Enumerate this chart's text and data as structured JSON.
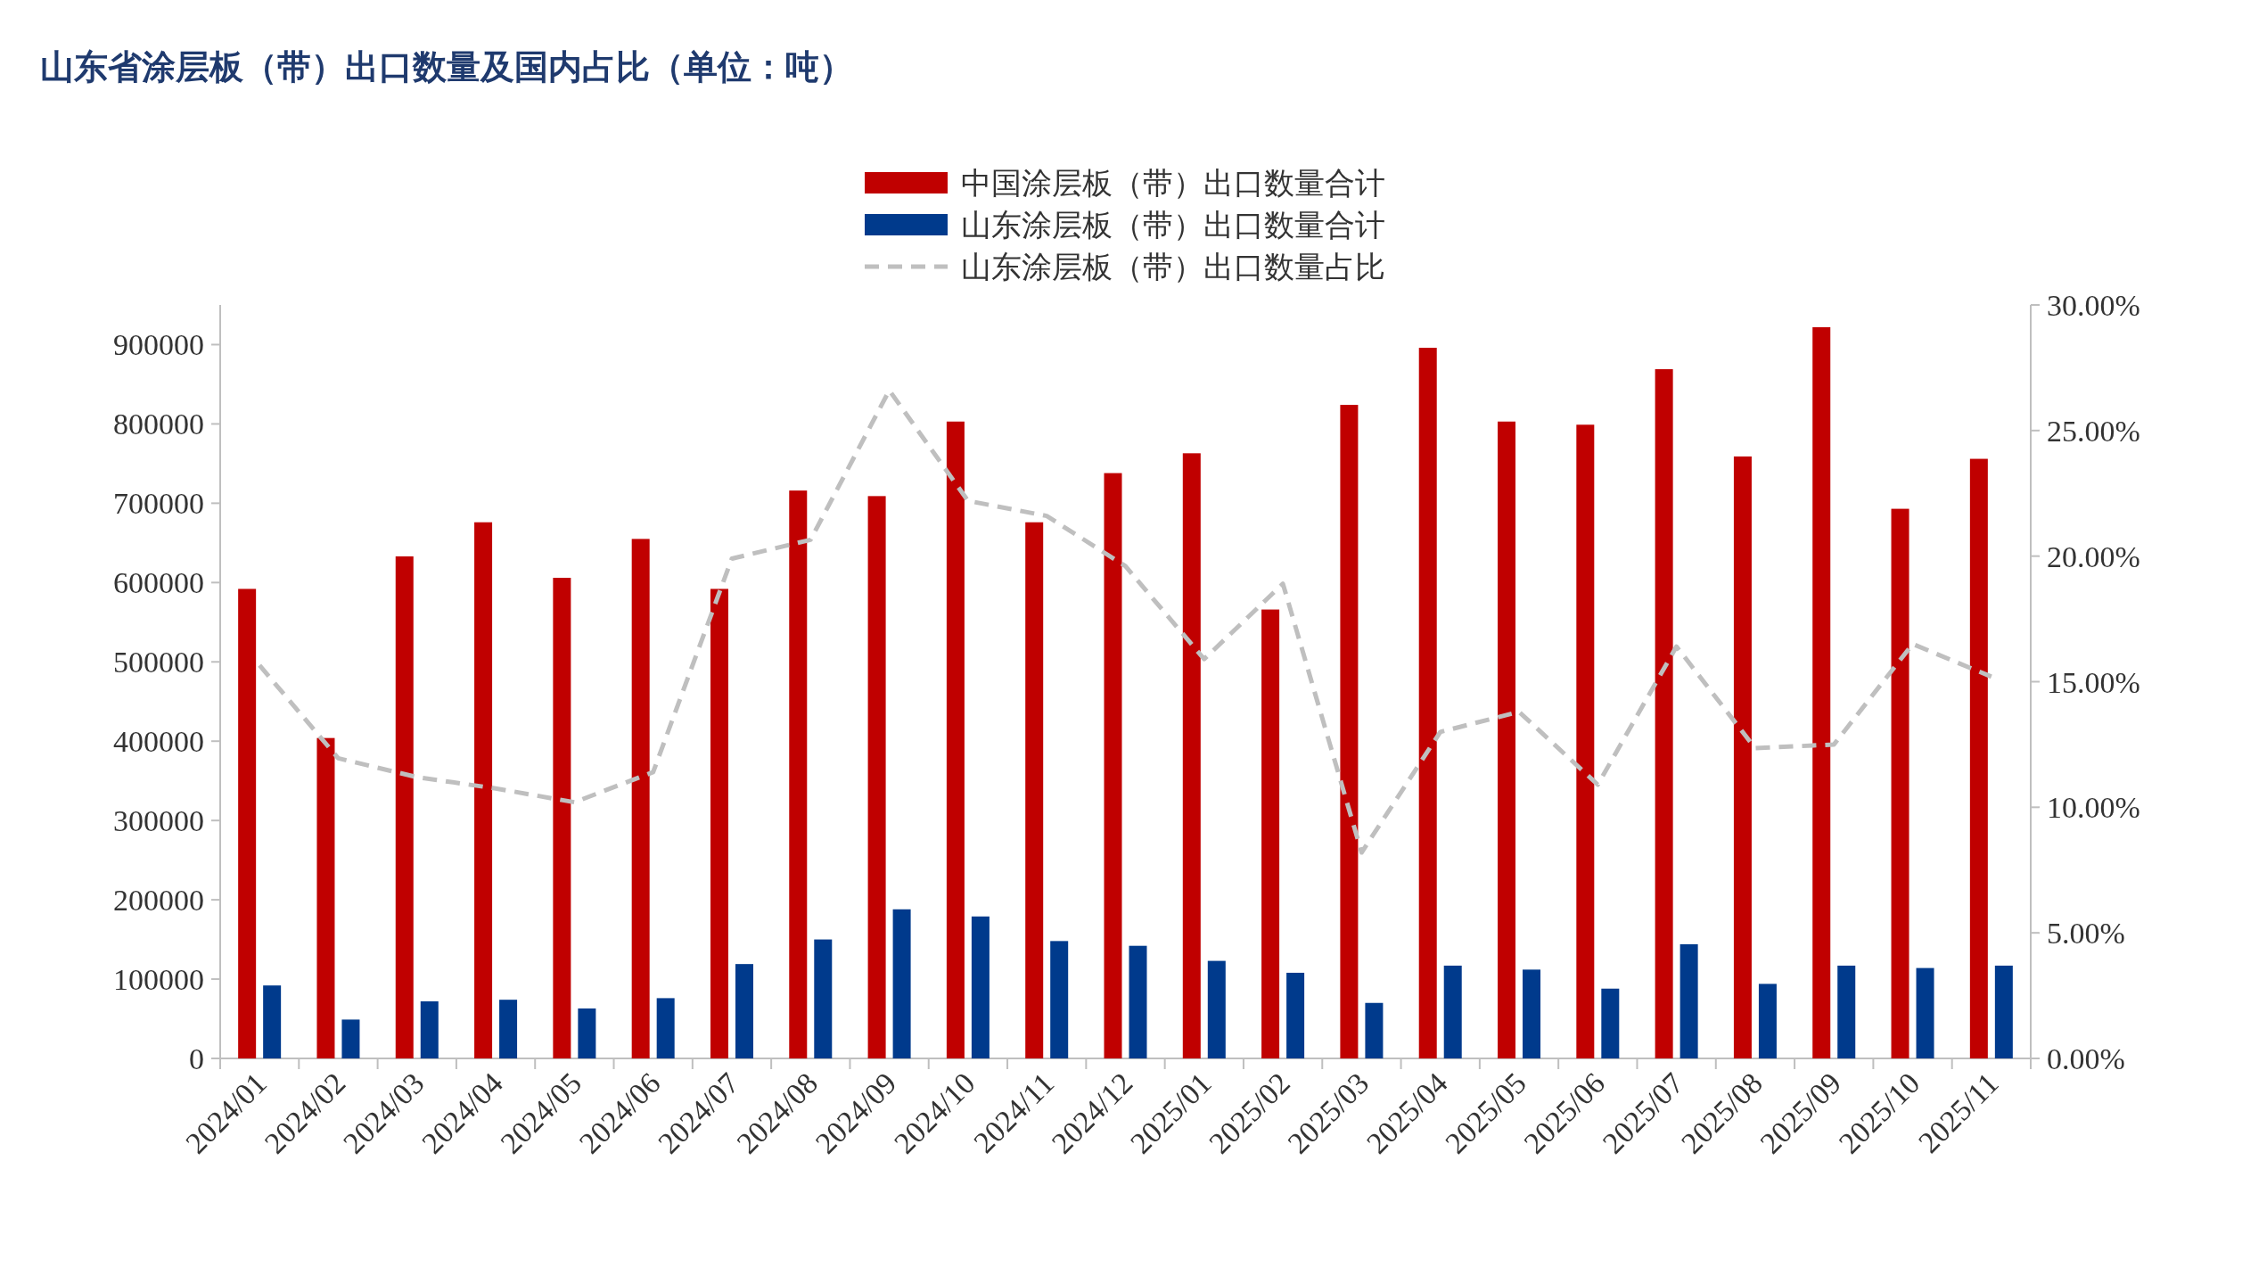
{
  "chart_data": {
    "type": "bar",
    "title": "山东省涂层板（带）出口数量及国内占比（单位：吨）",
    "categories": [
      "2024/01",
      "2024/02",
      "2024/03",
      "2024/04",
      "2024/05",
      "2024/06",
      "2024/07",
      "2024/08",
      "2024/09",
      "2024/10",
      "2024/11",
      "2024/12",
      "2025/01",
      "2025/02",
      "2025/03",
      "2025/04",
      "2025/05",
      "2025/06",
      "2025/07",
      "2025/08",
      "2025/09",
      "2025/10",
      "2025/11"
    ],
    "series": [
      {
        "name": "中国涂层板（带）出口数量合计",
        "color": "#c00000",
        "values": [
          592000,
          404000,
          633000,
          676000,
          606000,
          655000,
          592000,
          716000,
          709000,
          803000,
          676000,
          738000,
          763000,
          566000,
          824000,
          896000,
          803000,
          799000,
          869000,
          759000,
          922000,
          693000,
          756000
        ]
      },
      {
        "name": "山东涂层板（带）出口数量合计",
        "color": "#003a8c",
        "values": [
          92000,
          49000,
          72000,
          74000,
          63000,
          76000,
          119000,
          150000,
          188000,
          179000,
          148000,
          142000,
          123000,
          108000,
          70000,
          117000,
          112000,
          88000,
          144000,
          94000,
          117000,
          114000,
          117000
        ]
      },
      {
        "name": "山东涂层板（带）出口数量占比",
        "color": "#bfbfbf",
        "type": "line",
        "axis": "y2",
        "line_style": "dashed",
        "values": [
          15.65,
          11.95,
          11.2,
          10.75,
          10.2,
          11.4,
          19.9,
          20.65,
          26.6,
          22.2,
          21.6,
          19.6,
          15.9,
          18.9,
          8.2,
          13.0,
          13.8,
          10.9,
          16.4,
          12.35,
          12.5,
          16.5,
          15.2
        ]
      }
    ],
    "ylim": [
      0,
      950000
    ],
    "yticks": [
      0,
      100000,
      200000,
      300000,
      400000,
      500000,
      600000,
      700000,
      800000,
      900000
    ],
    "y2lim": [
      0,
      30
    ],
    "y2ticks": [
      {
        "value": 0,
        "label": "0.00%"
      },
      {
        "value": 5,
        "label": "5.00%"
      },
      {
        "value": 10,
        "label": "10.00%"
      },
      {
        "value": 15,
        "label": "15.00%"
      },
      {
        "value": 20,
        "label": "20.00%"
      },
      {
        "value": 25,
        "label": "25.00%"
      },
      {
        "value": 30,
        "label": "30.00%"
      }
    ],
    "legend": "top",
    "grid": false,
    "marker": "none"
  }
}
